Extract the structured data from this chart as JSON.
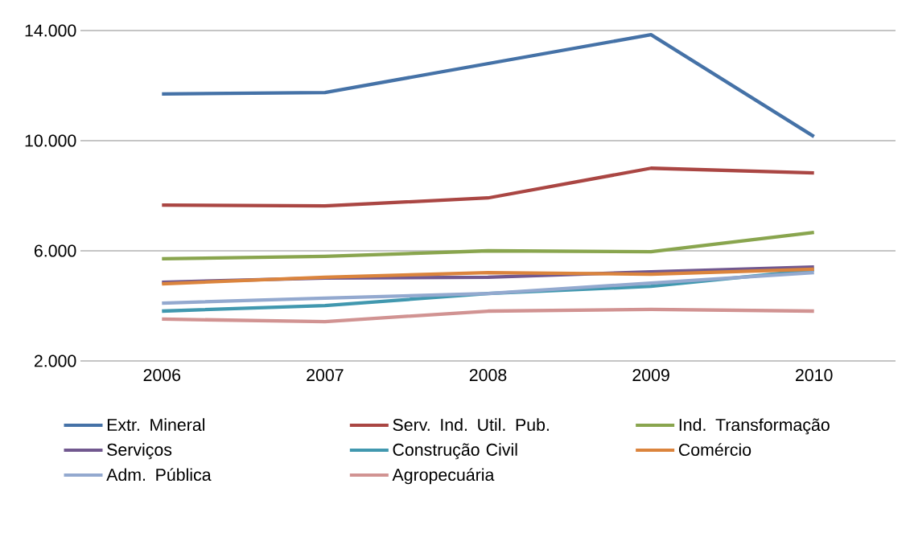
{
  "chart_data": {
    "type": "line",
    "categories": [
      "2006",
      "2007",
      "2008",
      "2009",
      "2010"
    ],
    "series": [
      {
        "name": "Extr. Mineral",
        "color": "#4572a7",
        "values": [
          11700,
          11750,
          12800,
          13850,
          10150
        ]
      },
      {
        "name": "Serv. Ind. Util. Pub.",
        "color": "#aa4643",
        "values": [
          7660,
          7630,
          7920,
          9000,
          8830
        ]
      },
      {
        "name": "Ind. Transformação",
        "color": "#89a54e",
        "values": [
          5710,
          5800,
          6000,
          5970,
          6670
        ]
      },
      {
        "name": "Serviços",
        "color": "#71588f",
        "values": [
          4860,
          5010,
          5040,
          5240,
          5410
        ]
      },
      {
        "name": "Construção Civil",
        "color": "#4198af",
        "values": [
          3810,
          4010,
          4450,
          4710,
          5300
        ]
      },
      {
        "name": "Comércio",
        "color": "#db843d",
        "values": [
          4800,
          5040,
          5210,
          5150,
          5330
        ]
      },
      {
        "name": "Adm. Pública",
        "color": "#93a9cf",
        "values": [
          4100,
          4280,
          4450,
          4830,
          5210
        ]
      },
      {
        "name": "Agropecuária",
        "color": "#d19392",
        "values": [
          3520,
          3430,
          3810,
          3870,
          3810
        ]
      }
    ],
    "ylim": [
      2000,
      14000
    ],
    "yticks": [
      {
        "value": 2000,
        "label": "2.000"
      },
      {
        "value": 6000,
        "label": "6.000"
      },
      {
        "value": 10000,
        "label": "10.000"
      },
      {
        "value": 14000,
        "label": "14.000"
      }
    ],
    "grid": "y",
    "legend": "bottom",
    "marker": "none",
    "line_style": "solid"
  }
}
